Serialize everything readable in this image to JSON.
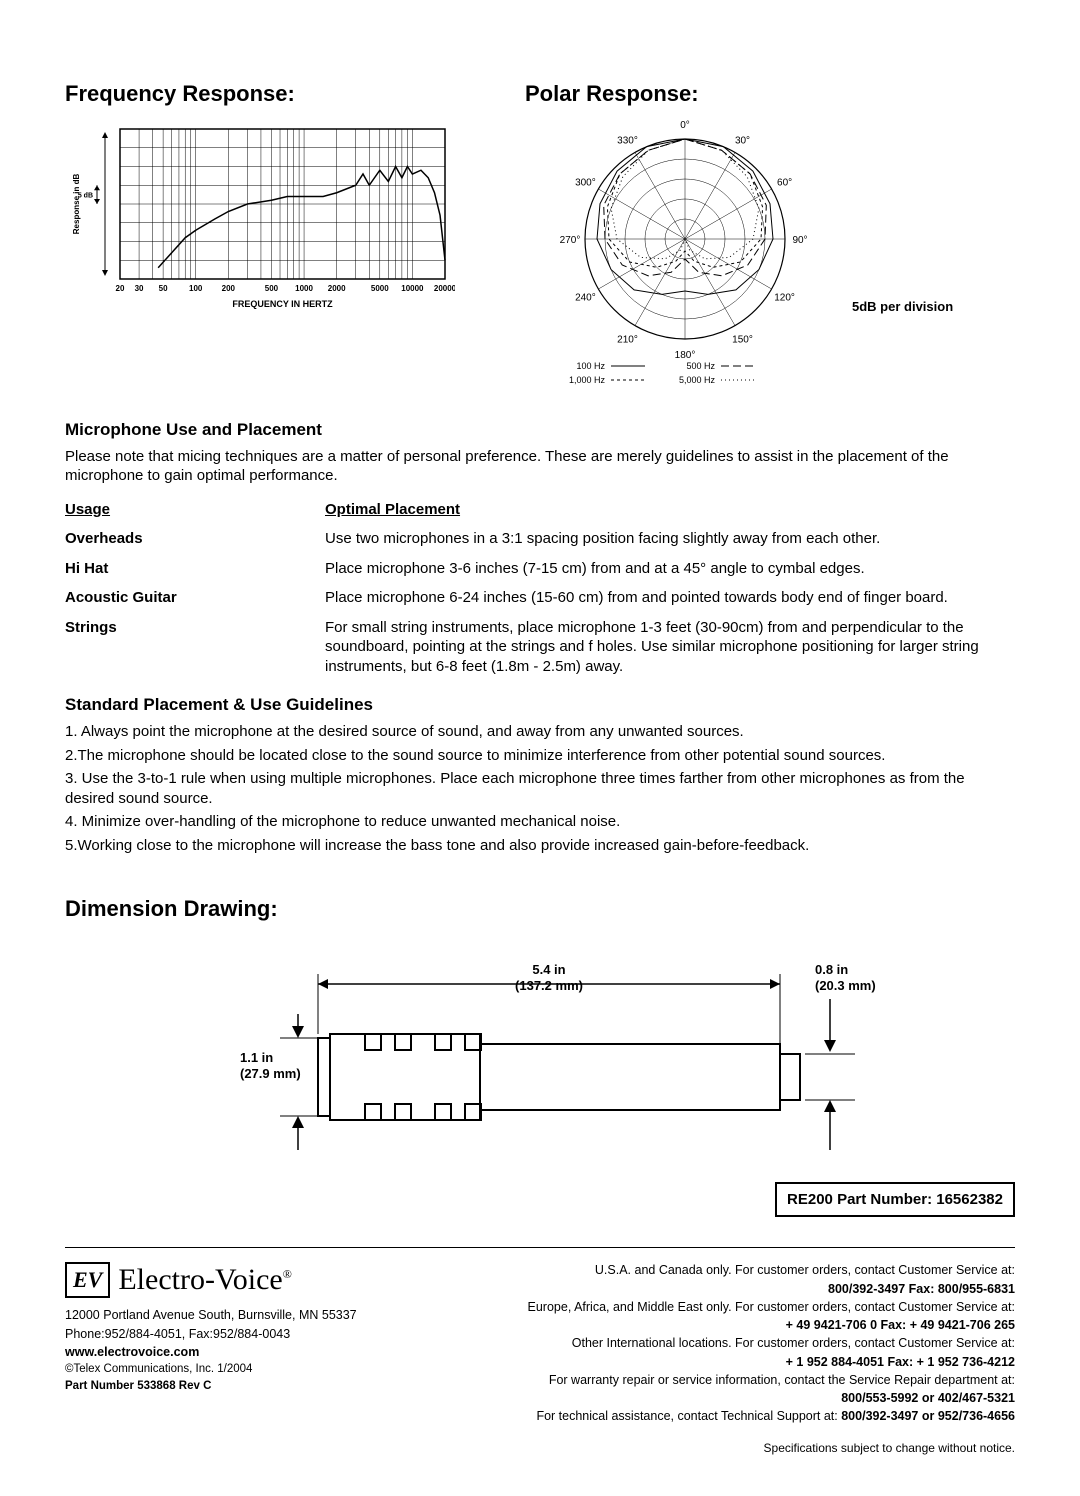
{
  "freq": {
    "title": "Frequency Response:",
    "type": "line",
    "y_label": "Response in dB",
    "y_sublabel": "5 dB",
    "x_label": "FREQUENCY IN HERTZ",
    "x_ticks": [
      "20",
      "30",
      "50",
      "100",
      "200",
      "500",
      "1000",
      "2000",
      "5000",
      "10000",
      "20000"
    ],
    "x_range": [
      20,
      20000
    ],
    "x_scale": "log",
    "y_divisions": 8,
    "y_step_db": 5,
    "grid_color": "#000000",
    "line_color": "#000000",
    "background_color": "#ffffff",
    "line_width": 1.5,
    "curve_db": [
      [
        45,
        -22
      ],
      [
        60,
        -18
      ],
      [
        80,
        -14
      ],
      [
        100,
        -12
      ],
      [
        150,
        -9
      ],
      [
        200,
        -7
      ],
      [
        300,
        -5
      ],
      [
        500,
        -4
      ],
      [
        700,
        -3
      ],
      [
        1000,
        -3
      ],
      [
        1500,
        -3
      ],
      [
        2000,
        -2
      ],
      [
        3000,
        0
      ],
      [
        3500,
        3
      ],
      [
        4000,
        0
      ],
      [
        5000,
        4
      ],
      [
        6000,
        1
      ],
      [
        7000,
        5
      ],
      [
        8000,
        2
      ],
      [
        9000,
        5
      ],
      [
        10000,
        3
      ],
      [
        12000,
        4
      ],
      [
        14000,
        2
      ],
      [
        16000,
        -2
      ],
      [
        18000,
        -8
      ],
      [
        20000,
        -20
      ]
    ]
  },
  "polar": {
    "title": "Polar Response:",
    "type": "polar",
    "angle_labels": [
      "0°",
      "30°",
      "60°",
      "90°",
      "120°",
      "150°",
      "180°",
      "210°",
      "240°",
      "270°",
      "300°",
      "330°"
    ],
    "rings": 5,
    "ring_note": "5dB per division",
    "grid_color": "#000000",
    "background_color": "#ffffff",
    "legend": [
      {
        "label": "100 Hz",
        "dash": "solid"
      },
      {
        "label": "500 Hz",
        "dash": "longdash"
      },
      {
        "label": "1,000 Hz",
        "dash": "shortdash"
      },
      {
        "label": "5,000 Hz",
        "dash": "dot"
      }
    ],
    "curves": {
      "100Hz": {
        "dash": "none",
        "color": "#000000",
        "db": [
          0,
          0,
          -1,
          -2,
          -3,
          -5,
          -7,
          -10,
          -12,
          -10,
          -7,
          -5,
          -3,
          -2,
          -1,
          0
        ]
      },
      "500Hz": {
        "dash": "8,4",
        "color": "#000000",
        "db": [
          0,
          -1,
          -2,
          -3,
          -5,
          -8,
          -12,
          -16,
          -20,
          -16,
          -12,
          -8,
          -5,
          -3,
          -2,
          -1
        ]
      },
      "1000Hz": {
        "dash": "3,3",
        "color": "#000000",
        "db": [
          0,
          -1,
          -2,
          -4,
          -6,
          -10,
          -15,
          -19,
          -22,
          -19,
          -15,
          -10,
          -6,
          -4,
          -2,
          -1
        ]
      },
      "5000Hz": {
        "dash": "1,3",
        "color": "#000000",
        "db": [
          0,
          -1,
          -3,
          -5,
          -8,
          -13,
          -18,
          -22,
          -25,
          -22,
          -18,
          -13,
          -8,
          -5,
          -3,
          -1
        ]
      }
    }
  },
  "placement": {
    "heading": "Microphone Use and Placement",
    "note": "Please note that micing techniques are a matter of personal preference. These are merely guidelines to assist in the placement of the microphone to gain optimal performance.",
    "col_usage": "Usage",
    "col_opt": "Optimal Placement",
    "rows": [
      {
        "usage": "Overheads",
        "opt": "Use two microphones in a 3:1 spacing position facing slightly away from each other."
      },
      {
        "usage": "Hi Hat",
        "opt": "Place microphone 3-6 inches (7-15 cm) from and at a 45° angle to cymbal edges."
      },
      {
        "usage": "Acoustic Guitar",
        "opt": "Place microphone 6-24 inches (15-60 cm) from and pointed towards body end of finger board."
      },
      {
        "usage": "Strings",
        "opt": "For small string instruments, place microphone 1-3 feet (30-90cm) from and perpendicular to the soundboard, pointing at the strings and f holes.  Use similar microphone positioning for larger string instruments, but 6-8 feet (1.8m - 2.5m) away."
      }
    ]
  },
  "guidelines": {
    "heading": "Standard Placement & Use Guidelines",
    "items": [
      "1. Always point the microphone at the desired source of sound, and away from any unwanted sources.",
      "2.The microphone should be located close to the sound source to minimize interference from other potential sound sources.",
      "3. Use the 3-to-1 rule when using multiple microphones. Place each microphone three times farther from other microphones as from the desired sound source.",
      "4. Minimize over-handling of the microphone to reduce unwanted mechanical noise.",
      "5.Working close to the microphone will increase the bass tone and also provide increased gain-before-feedback."
    ]
  },
  "dimension": {
    "heading": "Dimension Drawing:",
    "length_in": "5.4 in",
    "length_mm": "(137.2 mm)",
    "tip_in": "0.8 in",
    "tip_mm": "(20.3 mm)",
    "dia_in": "1.1 in",
    "dia_mm": "(27.9 mm)",
    "stroke": "#000000",
    "line_width": 2
  },
  "part_box": "RE200 Part Number: 16562382",
  "footer": {
    "logo_badge": "EV",
    "logo_text": "Electro-Voice",
    "addr": "12000 Portland Avenue South, Burnsville, MN 55337",
    "phone": "Phone:952/884-4051, Fax:952/884-0043",
    "web": "www.electrovoice.com",
    "copyright": "©Telex Communications, Inc. 1/2004",
    "pn": "Part Number 533868  Rev C",
    "r1": "U.S.A. and Canada only. For customer orders, contact Customer Service at:",
    "r1b": "800/392-3497  Fax: 800/955-6831",
    "r2": "Europe, Africa, and Middle East only. For customer orders, contact Customer Service at:",
    "r2b": "+ 49 9421-706 0   Fax: + 49 9421-706 265",
    "r3": "Other International locations. For customer orders, contact Customer Service at:",
    "r3b": "+ 1 952 884-4051   Fax: + 1 952 736-4212",
    "r4": "For warranty repair or service information, contact the Service Repair department at:",
    "r4b": "800/553-5992 or 402/467-5321",
    "r5": "For technical assistance, contact Technical Support at: ",
    "r5b": "800/392-3497 or 952/736-4656",
    "final": "Specifications subject to change without notice."
  }
}
